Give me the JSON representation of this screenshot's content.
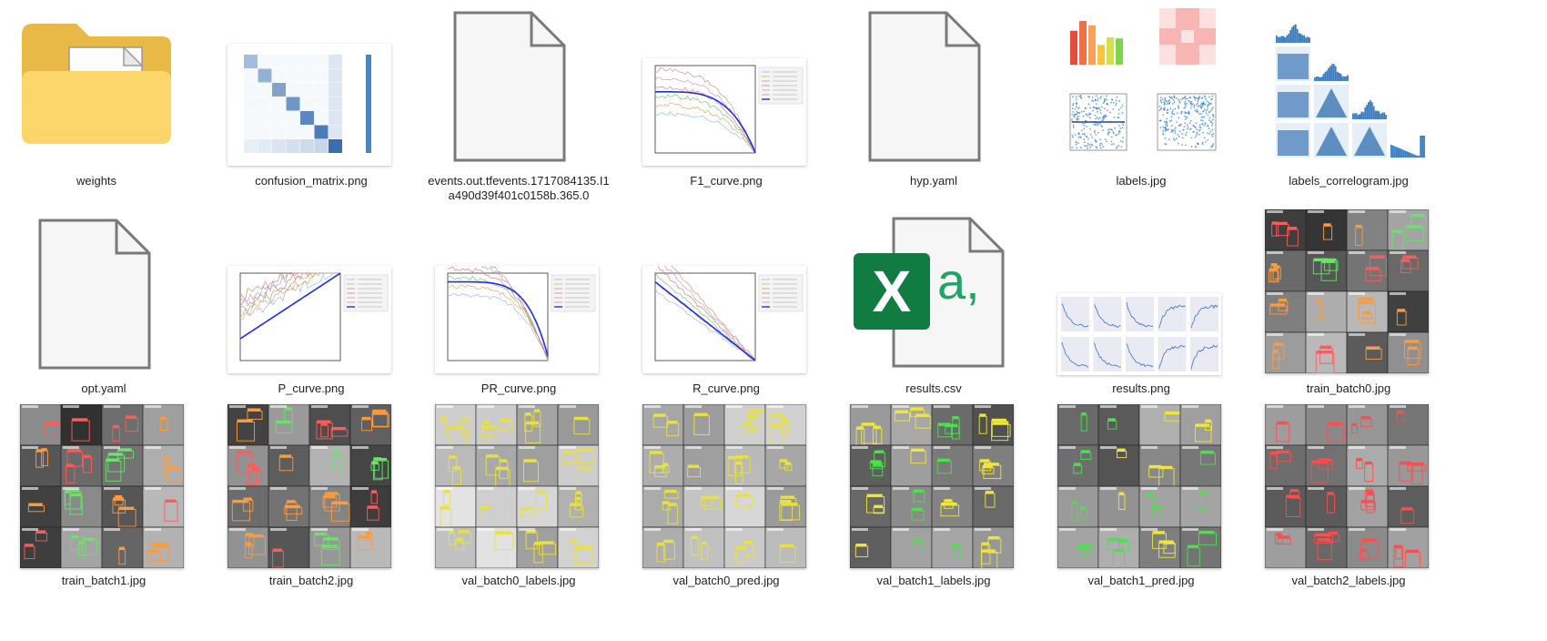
{
  "files": [
    {
      "name": "weights",
      "type": "folder"
    },
    {
      "name": "confusion_matrix.png",
      "type": "image",
      "thumb": "confusion"
    },
    {
      "name": "events.out.tfevents.1717084135.I1a490d39f401c0158b.365.0",
      "type": "file"
    },
    {
      "name": "F1_curve.png",
      "type": "image",
      "thumb": "curve_down"
    },
    {
      "name": "hyp.yaml",
      "type": "file"
    },
    {
      "name": "labels.jpg",
      "type": "image",
      "thumb": "labels"
    },
    {
      "name": "labels_correlogram.jpg",
      "type": "image",
      "thumb": "correlogram"
    },
    {
      "name": "opt.yaml",
      "type": "file"
    },
    {
      "name": "P_curve.png",
      "type": "image",
      "thumb": "curve_up"
    },
    {
      "name": "PR_curve.png",
      "type": "image",
      "thumb": "curve_pr"
    },
    {
      "name": "R_curve.png",
      "type": "image",
      "thumb": "curve_r"
    },
    {
      "name": "results.csv",
      "type": "csv"
    },
    {
      "name": "results.png",
      "type": "image",
      "thumb": "results"
    },
    {
      "name": "train_batch0.jpg",
      "type": "image",
      "thumb": "batch_dark"
    },
    {
      "name": "train_batch1.jpg",
      "type": "image",
      "thumb": "batch_dark"
    },
    {
      "name": "train_batch2.jpg",
      "type": "image",
      "thumb": "batch_dark"
    },
    {
      "name": "val_batch0_labels.jpg",
      "type": "image",
      "thumb": "batch_yellow"
    },
    {
      "name": "val_batch0_pred.jpg",
      "type": "image",
      "thumb": "batch_yellow"
    },
    {
      "name": "val_batch1_labels.jpg",
      "type": "image",
      "thumb": "batch_green"
    },
    {
      "name": "val_batch1_pred.jpg",
      "type": "image",
      "thumb": "batch_green"
    },
    {
      "name": "val_batch2_labels.jpg",
      "type": "image",
      "thumb": "batch_red"
    }
  ],
  "csv_icon_text": "a,",
  "csv_badge_letter": "X",
  "colors": {
    "folder_back": "#e9b948",
    "folder_front": "#fcd56b",
    "excel_green": "#107c41",
    "csv_text": "#21a366"
  }
}
